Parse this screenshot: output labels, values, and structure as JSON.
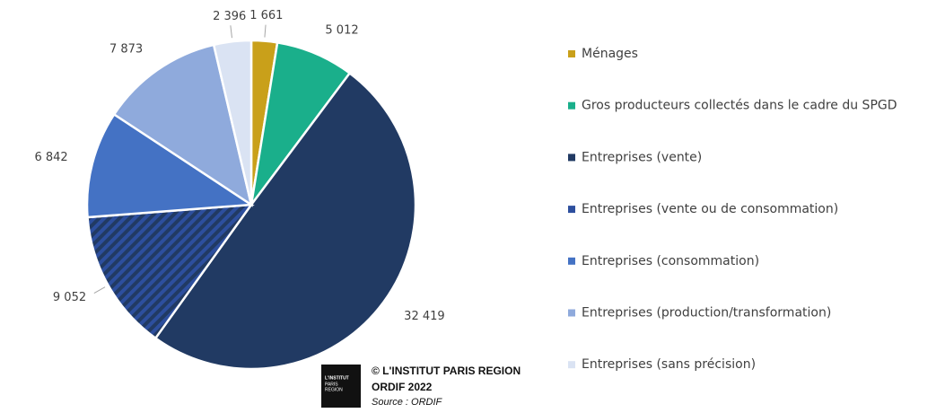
{
  "chart_data": {
    "type": "pie",
    "categories": [
      "Ménages",
      "Gros producteurs collectés dans le cadre du SPGD",
      "Entreprises (vente)",
      "Entreprises (vente ou de consommation)",
      "Entreprises (consommation)",
      "Entreprises (production/transformation)",
      "Entreprises (sans précision)"
    ],
    "values": [
      1661,
      5012,
      32419,
      9052,
      6842,
      7873,
      2396
    ],
    "value_labels": [
      "1 661",
      "5 012",
      "32 419",
      "9 052",
      "6 842",
      "7 873",
      "2 396"
    ],
    "colors": [
      "#c9a01a",
      "#1aaf8b",
      "#213a63",
      "#2d4f9e",
      "#4472c4",
      "#8faadc",
      "#dae3f3"
    ],
    "hatch": [
      false,
      false,
      false,
      true,
      false,
      false,
      false
    ],
    "legend": "right"
  },
  "footer": {
    "logo": [
      "L'INSTITUT",
      "PARIS",
      "REGION"
    ],
    "credit": "© L'INSTITUT PARIS REGION",
    "edition": "ORDIF 2022",
    "source": "Source : ORDIF"
  }
}
